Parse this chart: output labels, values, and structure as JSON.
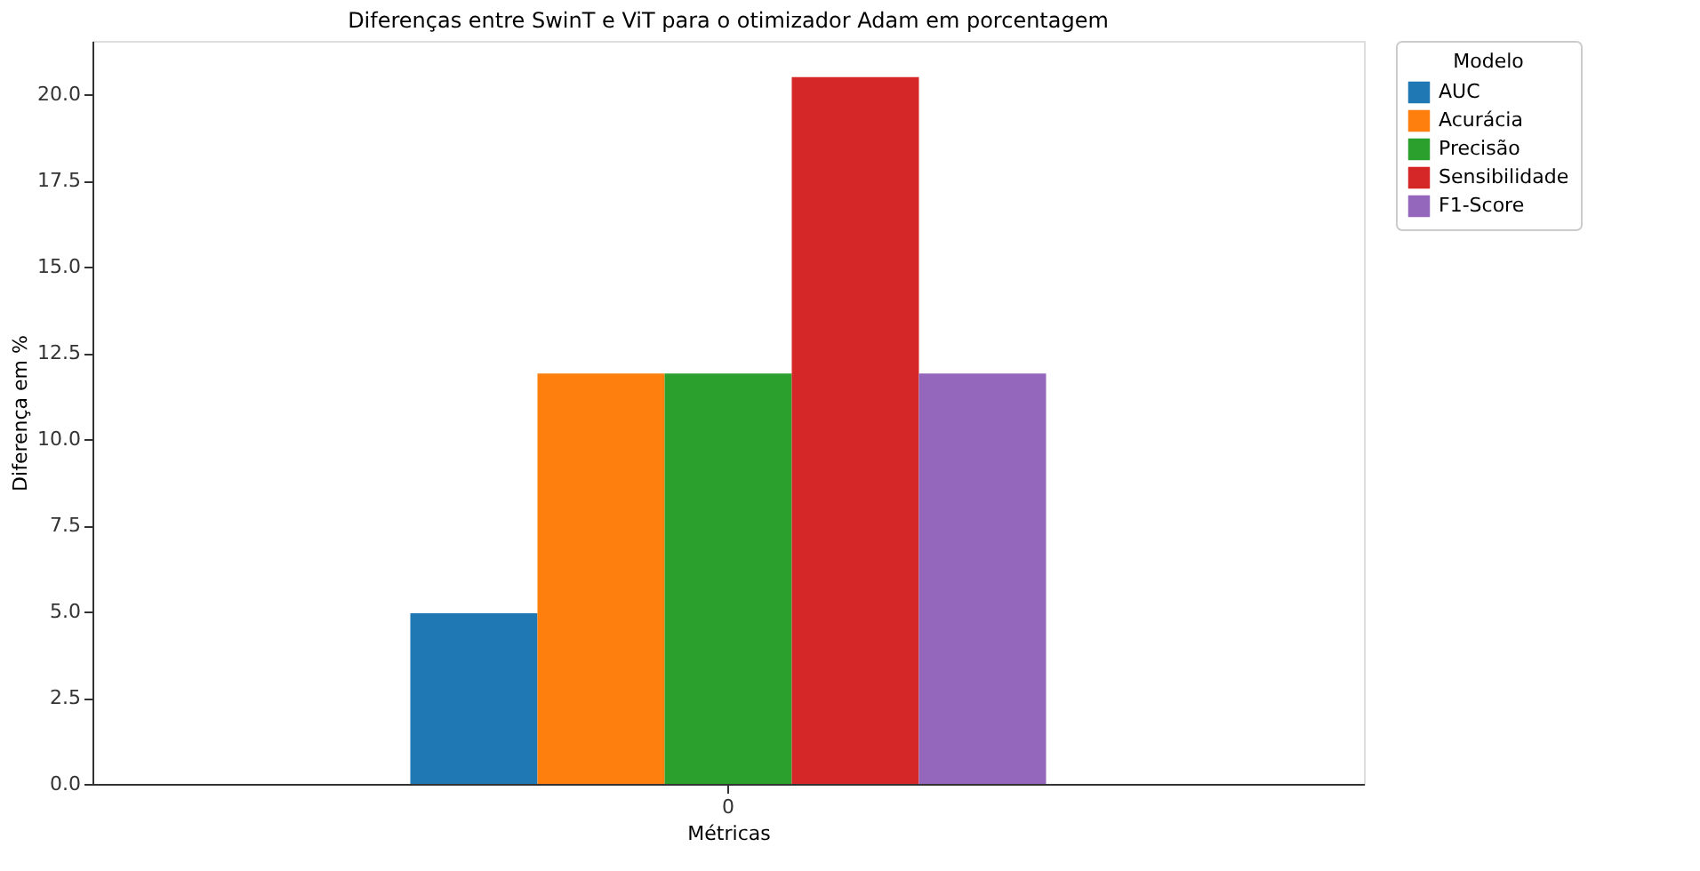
{
  "chart_data": {
    "type": "bar",
    "title": "Diferenças entre SwinT e ViT para o otimizador Adam em porcentagem",
    "xlabel": "Métricas",
    "ylabel": "Diferença em %",
    "legend_title": "Modelo",
    "categories": [
      "0"
    ],
    "series": [
      {
        "name": "AUC",
        "color": "#1f77b4",
        "values": [
          4.95
        ]
      },
      {
        "name": "Acurácia",
        "color": "#ff7f0e",
        "values": [
          11.9
        ]
      },
      {
        "name": "Precisão",
        "color": "#2ca02c",
        "values": [
          11.9
        ]
      },
      {
        "name": "Sensibilidade",
        "color": "#d62728",
        "values": [
          20.5
        ]
      },
      {
        "name": "F1-Score",
        "color": "#9467bd",
        "values": [
          11.9
        ]
      }
    ],
    "ylim": [
      0,
      21.55
    ],
    "yticks": [
      {
        "value": 0,
        "label": "0.0"
      },
      {
        "value": 2.5,
        "label": "2.5"
      },
      {
        "value": 5,
        "label": "5.0"
      },
      {
        "value": 7.5,
        "label": "7.5"
      },
      {
        "value": 10,
        "label": "10.0"
      },
      {
        "value": 12.5,
        "label": "12.5"
      },
      {
        "value": 15,
        "label": "15.0"
      },
      {
        "value": 17.5,
        "label": "17.5"
      },
      {
        "value": 20,
        "label": "20.0"
      }
    ],
    "grid": false,
    "legend": "top right"
  }
}
